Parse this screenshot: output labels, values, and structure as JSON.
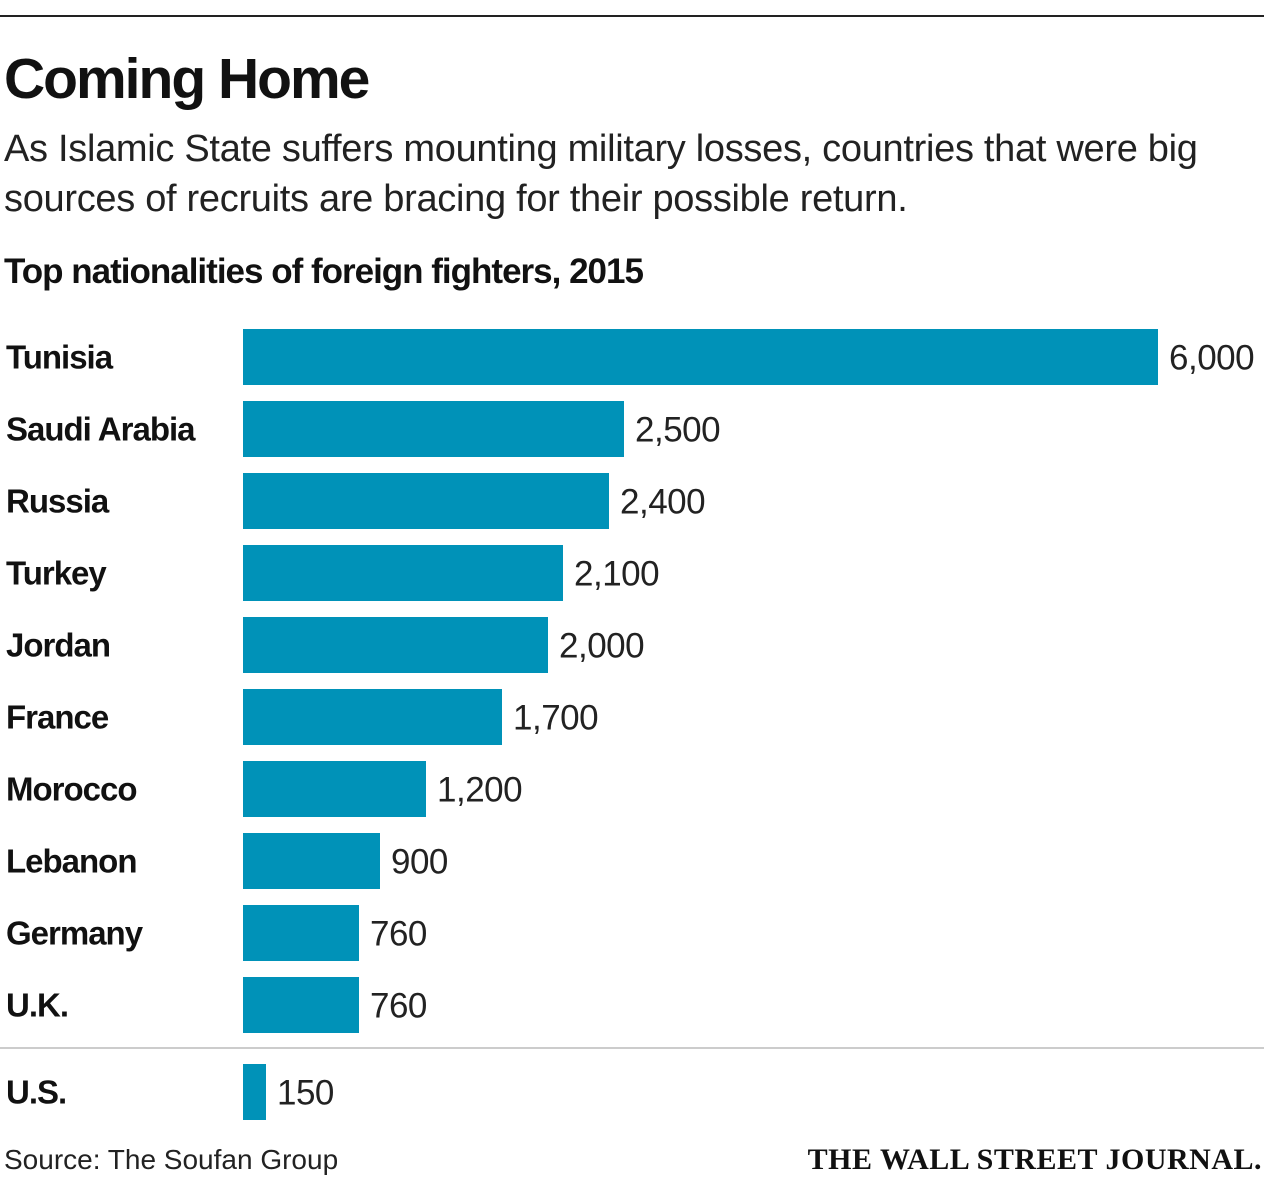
{
  "header": {
    "headline": "Coming Home",
    "dek": "As Islamic State suffers mounting military losses, countries that were big sources of recruits are bracing for their possible return."
  },
  "footer": {
    "source": "Source: The Soufan Group",
    "credit": "THE WALL STREET JOURNAL."
  },
  "colors": {
    "bar": "#0092b8",
    "divider": "#cccccc",
    "rule": "#222222"
  },
  "chart_data": {
    "type": "bar",
    "orientation": "horizontal",
    "title": "Top nationalities of foreign fighters, 2015",
    "xlabel": "",
    "ylabel": "",
    "grid": false,
    "categories": [
      "Tunisia",
      "Saudi Arabia",
      "Russia",
      "Turkey",
      "Jordan",
      "France",
      "Morocco",
      "Lebanon",
      "Germany",
      "U.K.",
      "U.S."
    ],
    "values": [
      6000,
      2500,
      2400,
      2100,
      2000,
      1700,
      1200,
      900,
      760,
      760,
      150
    ],
    "value_labels": [
      "6,000",
      "2,500",
      "2,400",
      "2,100",
      "2,000",
      "1,700",
      "1,200",
      "900",
      "760",
      "760",
      "150"
    ],
    "xlim": [
      0,
      6000
    ],
    "separated_categories": [
      "U.S."
    ]
  }
}
